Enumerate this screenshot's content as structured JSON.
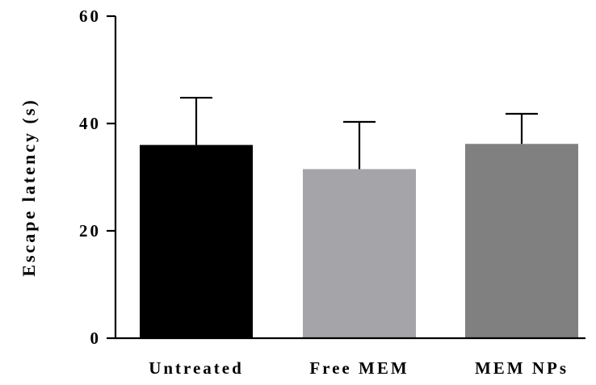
{
  "chart_data": {
    "type": "bar",
    "title": "",
    "xlabel": "",
    "ylabel": "Escape latency (s)",
    "ylim": [
      0,
      60
    ],
    "yticks": [
      0,
      20,
      40,
      60
    ],
    "grid": false,
    "legend": "none",
    "categories": [
      "Untreated",
      "Free MEM",
      "MEM NPs"
    ],
    "series": [
      {
        "values": [
          36,
          31.5,
          36.2
        ],
        "error_upper": [
          8.8,
          8.8,
          5.6
        ],
        "colors": [
          "#000000",
          "#a5a4a9",
          "#808080"
        ]
      }
    ]
  }
}
